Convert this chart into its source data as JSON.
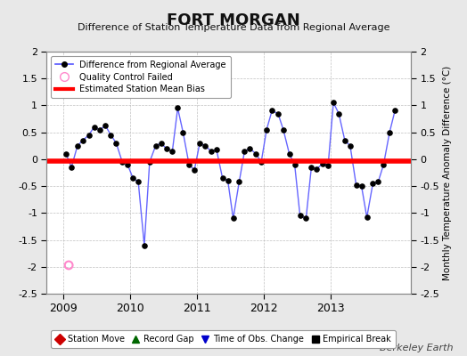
{
  "title": "FORT MORGAN",
  "subtitle": "Difference of Station Temperature Data from Regional Average",
  "ylabel": "Monthly Temperature Anomaly Difference (°C)",
  "bias_value": -0.03,
  "ylim": [
    -2.5,
    2.0
  ],
  "xlim": [
    2008.75,
    2014.2
  ],
  "background_color": "#e8e8e8",
  "plot_bg_color": "#ffffff",
  "grid_color": "#c0c0c0",
  "line_color": "#5555ff",
  "marker_color": "#000000",
  "bias_color": "#ff0000",
  "qc_fail_x": 2009.08,
  "qc_fail_y": -1.97,
  "x_data": [
    2009.04,
    2009.12,
    2009.21,
    2009.29,
    2009.38,
    2009.46,
    2009.54,
    2009.63,
    2009.71,
    2009.79,
    2009.88,
    2009.96,
    2010.04,
    2010.12,
    2010.21,
    2010.29,
    2010.38,
    2010.46,
    2010.54,
    2010.63,
    2010.71,
    2010.79,
    2010.88,
    2010.96,
    2011.04,
    2011.12,
    2011.21,
    2011.29,
    2011.38,
    2011.46,
    2011.54,
    2011.63,
    2011.71,
    2011.79,
    2011.88,
    2011.96,
    2012.04,
    2012.12,
    2012.21,
    2012.29,
    2012.38,
    2012.46,
    2012.54,
    2012.63,
    2012.71,
    2012.79,
    2012.88,
    2012.96,
    2013.04,
    2013.12,
    2013.21,
    2013.29,
    2013.38,
    2013.46,
    2013.54,
    2013.63,
    2013.71,
    2013.79,
    2013.88,
    2013.96
  ],
  "y_data": [
    0.1,
    -0.15,
    0.25,
    0.35,
    0.45,
    0.6,
    0.55,
    0.62,
    0.45,
    0.3,
    -0.05,
    -0.1,
    -0.35,
    -0.42,
    -1.6,
    -0.05,
    0.25,
    0.3,
    0.2,
    0.15,
    0.95,
    0.5,
    -0.1,
    -0.2,
    0.3,
    0.25,
    0.15,
    0.18,
    -0.35,
    -0.4,
    -1.1,
    -0.42,
    0.15,
    0.2,
    0.1,
    -0.05,
    0.55,
    0.9,
    0.85,
    0.55,
    0.1,
    -0.1,
    -1.05,
    -1.1,
    -0.15,
    -0.18,
    -0.08,
    -0.12,
    1.05,
    0.85,
    0.35,
    0.25,
    -0.48,
    -0.5,
    -1.08,
    -0.45,
    -0.42,
    -0.1,
    0.5,
    0.9
  ],
  "x_ticks": [
    2009,
    2010,
    2011,
    2012,
    2013
  ],
  "yticks": [
    -2.5,
    -2.0,
    -1.5,
    -1.0,
    -0.5,
    0.0,
    0.5,
    1.0,
    1.5,
    2.0
  ],
  "legend_main": [
    {
      "label": "Difference from Regional Average",
      "color": "#5555ff",
      "type": "line_dot"
    },
    {
      "label": "Quality Control Failed",
      "color": "#ff88cc",
      "type": "open_circle"
    },
    {
      "label": "Estimated Station Mean Bias",
      "color": "#ff0000",
      "type": "line"
    }
  ],
  "legend_bottom": [
    {
      "label": "Station Move",
      "color": "#cc0000",
      "marker": "D"
    },
    {
      "label": "Record Gap",
      "color": "#006600",
      "marker": "^"
    },
    {
      "label": "Time of Obs. Change",
      "color": "#0000cc",
      "marker": "v"
    },
    {
      "label": "Empirical Break",
      "color": "#000000",
      "marker": "s"
    }
  ],
  "watermark": "Berkeley Earth"
}
